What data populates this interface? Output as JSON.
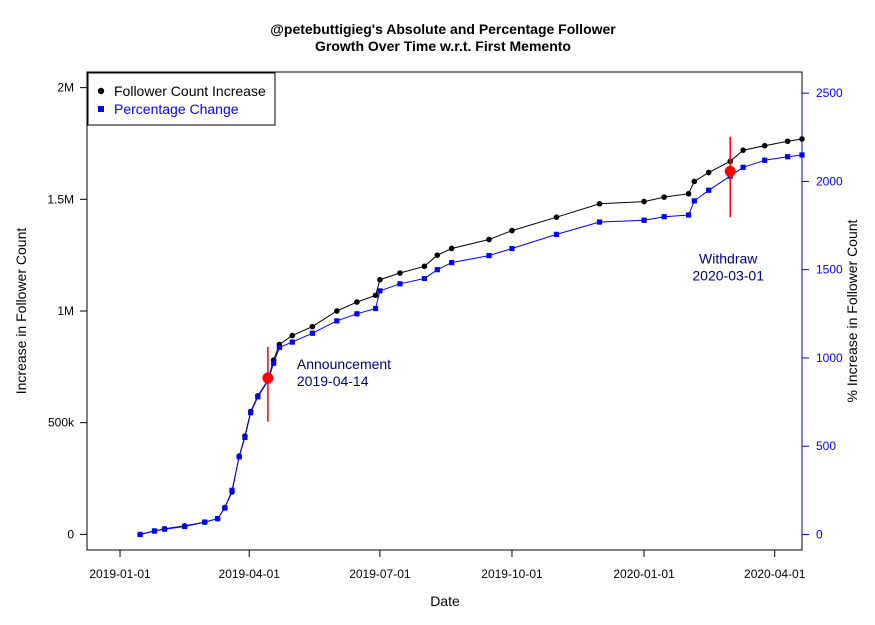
{
  "chart_data": {
    "type": "line",
    "title_line1": "@petebuttigieg's Absolute and Percentage Follower",
    "title_line2": "Growth Over Time w.r.t. First Memento",
    "xlabel": "Date",
    "ylabel_left": "Increase in Follower Count",
    "ylabel_right": "% Increase in Follower Count",
    "x_ticks": [
      "2019-01-01",
      "2019-04-01",
      "2019-07-01",
      "2019-10-01",
      "2020-01-01",
      "2020-04-01"
    ],
    "y_left_ticks": [
      "0",
      "500k",
      "1M",
      "1.5M",
      "2M"
    ],
    "y_right_ticks": [
      "0",
      "500",
      "1000",
      "1500",
      "2000",
      "2500"
    ],
    "xlim": [
      "2018-12-09",
      "2020-04-20"
    ],
    "ylim_left": [
      -70000,
      2070000
    ],
    "ylim_right": [
      -88,
      2620
    ],
    "grid": false,
    "legend_position": "top-left",
    "legend": [
      {
        "label": "Follower Count Increase",
        "color": "#000000",
        "marker": "circle"
      },
      {
        "label": "Percentage Change",
        "color": "#0000ff",
        "marker": "square"
      }
    ],
    "series": [
      {
        "name": "Follower Count Increase",
        "axis": "left",
        "color": "#000000",
        "points": [
          [
            "2019-01-15",
            0
          ],
          [
            "2019-01-25",
            15000
          ],
          [
            "2019-02-01",
            25000
          ],
          [
            "2019-02-15",
            38000
          ],
          [
            "2019-03-01",
            55000
          ],
          [
            "2019-03-10",
            70000
          ],
          [
            "2019-03-15",
            120000
          ],
          [
            "2019-03-20",
            190000
          ],
          [
            "2019-03-25",
            350000
          ],
          [
            "2019-03-29",
            440000
          ],
          [
            "2019-04-02",
            550000
          ],
          [
            "2019-04-07",
            620000
          ],
          [
            "2019-04-14",
            690000
          ],
          [
            "2019-04-18",
            780000
          ],
          [
            "2019-04-22",
            850000
          ],
          [
            "2019-05-01",
            890000
          ],
          [
            "2019-05-15",
            930000
          ],
          [
            "2019-06-01",
            1000000
          ],
          [
            "2019-06-15",
            1040000
          ],
          [
            "2019-06-28",
            1070000
          ],
          [
            "2019-07-01",
            1140000
          ],
          [
            "2019-07-15",
            1170000
          ],
          [
            "2019-08-01",
            1200000
          ],
          [
            "2019-08-10",
            1250000
          ],
          [
            "2019-08-20",
            1280000
          ],
          [
            "2019-09-15",
            1320000
          ],
          [
            "2019-10-01",
            1360000
          ],
          [
            "2019-11-01",
            1420000
          ],
          [
            "2019-12-01",
            1480000
          ],
          [
            "2020-01-01",
            1490000
          ],
          [
            "2020-01-15",
            1510000
          ],
          [
            "2020-02-01",
            1525000
          ],
          [
            "2020-02-05",
            1580000
          ],
          [
            "2020-02-15",
            1620000
          ],
          [
            "2020-03-01",
            1670000
          ],
          [
            "2020-03-10",
            1720000
          ],
          [
            "2020-03-25",
            1740000
          ],
          [
            "2020-04-10",
            1760000
          ],
          [
            "2020-04-20",
            1770000
          ]
        ]
      },
      {
        "name": "Percentage Change",
        "axis": "right",
        "color": "#0000ff",
        "points": [
          [
            "2019-01-15",
            0
          ],
          [
            "2019-01-25",
            20
          ],
          [
            "2019-02-01",
            30
          ],
          [
            "2019-02-15",
            45
          ],
          [
            "2019-03-01",
            70
          ],
          [
            "2019-03-10",
            90
          ],
          [
            "2019-03-15",
            150
          ],
          [
            "2019-03-20",
            250
          ],
          [
            "2019-03-25",
            440
          ],
          [
            "2019-03-29",
            550
          ],
          [
            "2019-04-02",
            690
          ],
          [
            "2019-04-07",
            780
          ],
          [
            "2019-04-14",
            870
          ],
          [
            "2019-04-18",
            970
          ],
          [
            "2019-04-22",
            1060
          ],
          [
            "2019-05-01",
            1090
          ],
          [
            "2019-05-15",
            1140
          ],
          [
            "2019-06-01",
            1210
          ],
          [
            "2019-06-15",
            1250
          ],
          [
            "2019-06-28",
            1280
          ],
          [
            "2019-07-01",
            1380
          ],
          [
            "2019-07-15",
            1420
          ],
          [
            "2019-08-01",
            1450
          ],
          [
            "2019-08-10",
            1500
          ],
          [
            "2019-08-20",
            1540
          ],
          [
            "2019-09-15",
            1580
          ],
          [
            "2019-10-01",
            1620
          ],
          [
            "2019-11-01",
            1700
          ],
          [
            "2019-12-01",
            1770
          ],
          [
            "2020-01-01",
            1780
          ],
          [
            "2020-01-15",
            1800
          ],
          [
            "2020-02-01",
            1810
          ],
          [
            "2020-02-05",
            1890
          ],
          [
            "2020-02-15",
            1950
          ],
          [
            "2020-03-01",
            2030
          ],
          [
            "2020-03-10",
            2080
          ],
          [
            "2020-03-25",
            2120
          ],
          [
            "2020-04-10",
            2140
          ],
          [
            "2020-04-20",
            2150
          ]
        ]
      }
    ],
    "events": [
      {
        "name": "Announcement",
        "date": "2019-04-14",
        "label_line1": "Announcement",
        "label_line2": "2019-04-14",
        "value_left": 700000,
        "range_left": [
          505000,
          840000
        ]
      },
      {
        "name": "Withdraw",
        "date": "2020-03-01",
        "label_line1": "Withdraw",
        "label_line2": "2020-03-01",
        "value_left": 1625000,
        "range_left": [
          1420000,
          1780000
        ]
      }
    ],
    "colors": {
      "series_black": "#000000",
      "series_blue": "#0000ff",
      "event_marker": "#ff0000",
      "annotation_text": "#00007f"
    }
  }
}
